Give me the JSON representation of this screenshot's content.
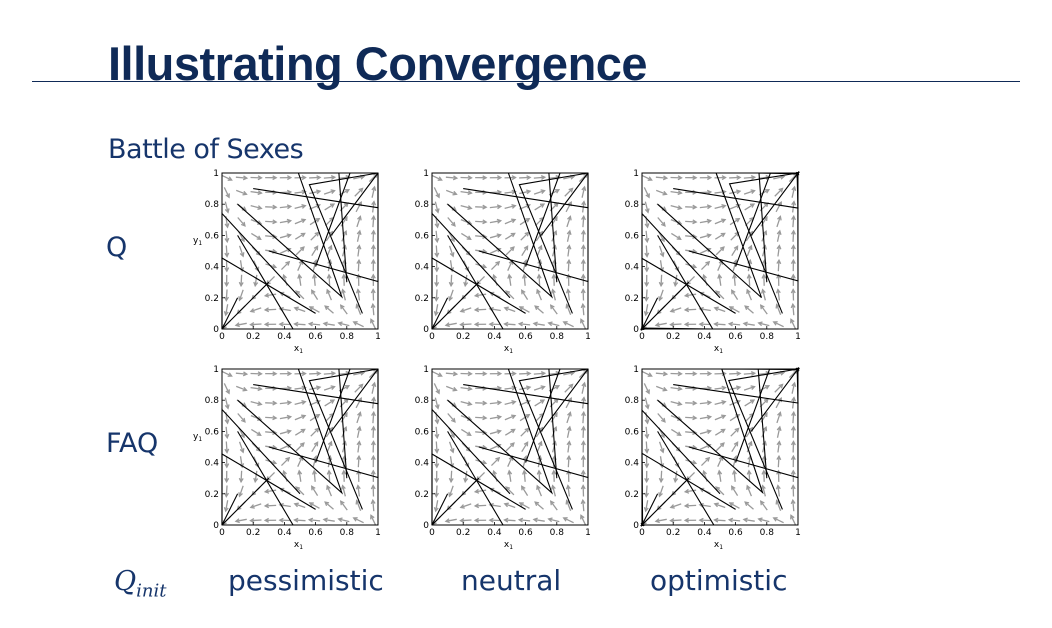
{
  "slide": {
    "title": "Illustrating Convergence",
    "subtitle": "Battle of Sexes"
  },
  "rows": [
    {
      "label": "Q"
    },
    {
      "label": "FAQ"
    }
  ],
  "qinit": {
    "base": "Q",
    "sub": "init"
  },
  "columns": [
    {
      "label": "pessimistic"
    },
    {
      "label": "neutral"
    },
    {
      "label": "optimistic"
    }
  ],
  "plot_common": {
    "x_ticks": [
      "0",
      "0.2",
      "0.4",
      "0.6",
      "0.8",
      "1"
    ],
    "y_ticks": [
      "0",
      "0.2",
      "0.4",
      "0.6",
      "0.8",
      "1"
    ],
    "x_label": "x",
    "x_label_sub": "1",
    "y_label": "y",
    "y_label_sub": "1",
    "arrow_color": "#9a9a9a",
    "trajectory_color": "#000000"
  },
  "chart_data": [
    {
      "type": "other",
      "row": "Q",
      "column": "pessimistic",
      "xlim": [
        0,
        1
      ],
      "ylim": [
        0,
        1
      ]
    },
    {
      "type": "other",
      "row": "Q",
      "column": "neutral",
      "xlim": [
        0,
        1
      ],
      "ylim": [
        0,
        1
      ]
    },
    {
      "type": "other",
      "row": "Q",
      "column": "optimistic",
      "xlim": [
        0,
        1
      ],
      "ylim": [
        0,
        1
      ]
    },
    {
      "type": "other",
      "row": "FAQ",
      "column": "pessimistic",
      "xlim": [
        0,
        1
      ],
      "ylim": [
        0,
        1
      ]
    },
    {
      "type": "other",
      "row": "FAQ",
      "column": "neutral",
      "xlim": [
        0,
        1
      ],
      "ylim": [
        0,
        1
      ]
    },
    {
      "type": "other",
      "row": "FAQ",
      "column": "optimistic",
      "xlim": [
        0,
        1
      ],
      "ylim": [
        0,
        1
      ]
    }
  ]
}
